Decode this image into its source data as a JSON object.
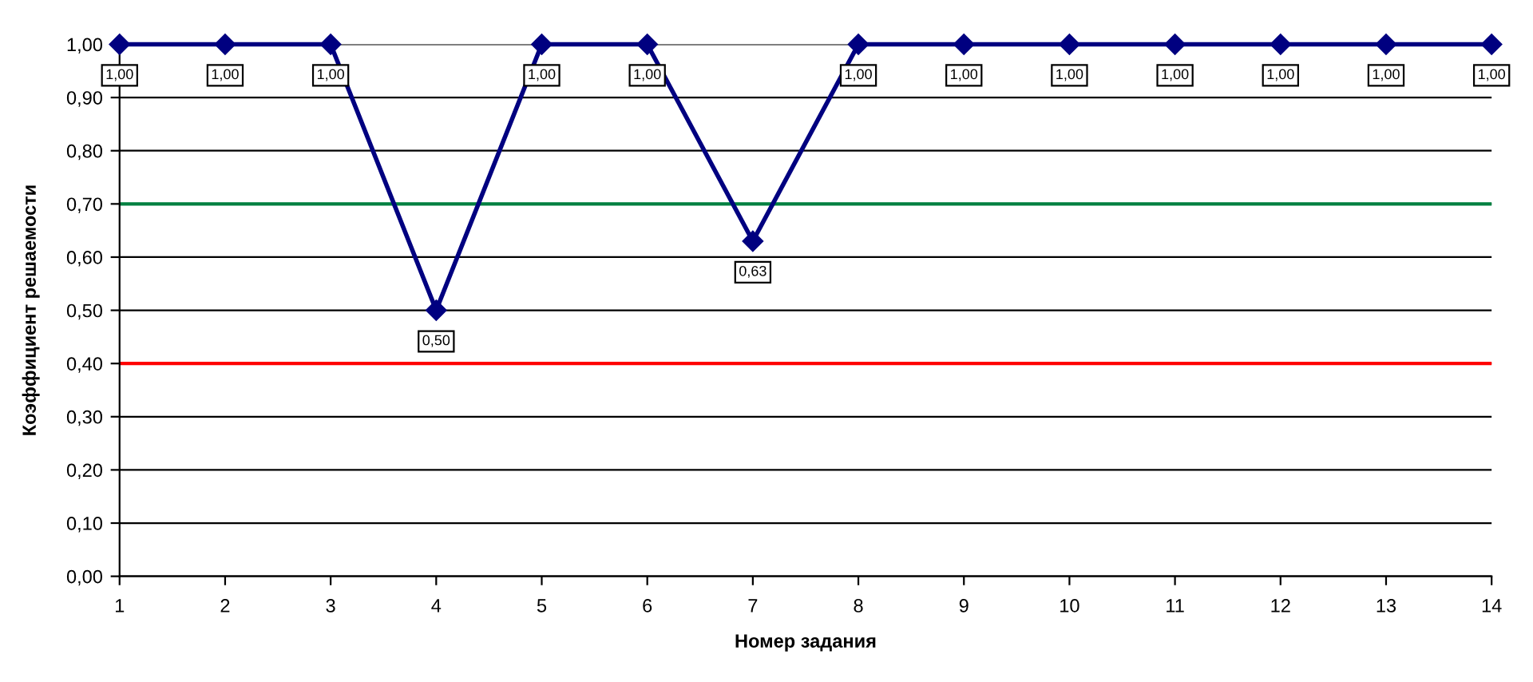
{
  "chart_data": {
    "type": "line",
    "xlabel": "Номер задания",
    "ylabel": "Коэффициент решаемости",
    "x": [
      1,
      2,
      3,
      4,
      5,
      6,
      7,
      8,
      9,
      10,
      11,
      12,
      13,
      14
    ],
    "series": [
      {
        "color": "#000080",
        "values": [
          1.0,
          1.0,
          1.0,
          0.5,
          1.0,
          1.0,
          0.63,
          1.0,
          1.0,
          1.0,
          1.0,
          1.0,
          1.0,
          1.0
        ],
        "value_labels": [
          "1,00",
          "1,00",
          "1,00",
          "0,50",
          "1,00",
          "1,00",
          "0,63",
          "1,00",
          "1,00",
          "1,00",
          "1,00",
          "1,00",
          "1,00",
          "1,00"
        ]
      }
    ],
    "xlim": [
      1,
      14
    ],
    "xticks": [
      1,
      2,
      3,
      4,
      5,
      6,
      7,
      8,
      9,
      10,
      11,
      12,
      13,
      14
    ],
    "ylim": [
      0,
      1
    ],
    "yticks": [
      {
        "value": 0,
        "label": "0,00"
      },
      {
        "value": 0.1,
        "label": "0,10"
      },
      {
        "value": 0.2,
        "label": "0,20"
      },
      {
        "value": 0.3,
        "label": "0,30"
      },
      {
        "value": 0.4,
        "label": "0,40"
      },
      {
        "value": 0.5,
        "label": "0,50"
      },
      {
        "value": 0.6,
        "label": "0,60"
      },
      {
        "value": 0.7,
        "label": "0,70"
      },
      {
        "value": 0.8,
        "label": "0,80"
      },
      {
        "value": 0.9,
        "label": "0,90"
      },
      {
        "value": 1,
        "label": "1,00"
      }
    ],
    "ref_lines": [
      {
        "axis": "y",
        "value": 0.7,
        "color": "#008040"
      },
      {
        "axis": "y",
        "value": 0.4,
        "color": "#ff0000"
      }
    ],
    "grid": "y",
    "marker": "diamond",
    "line_style": "solid"
  }
}
